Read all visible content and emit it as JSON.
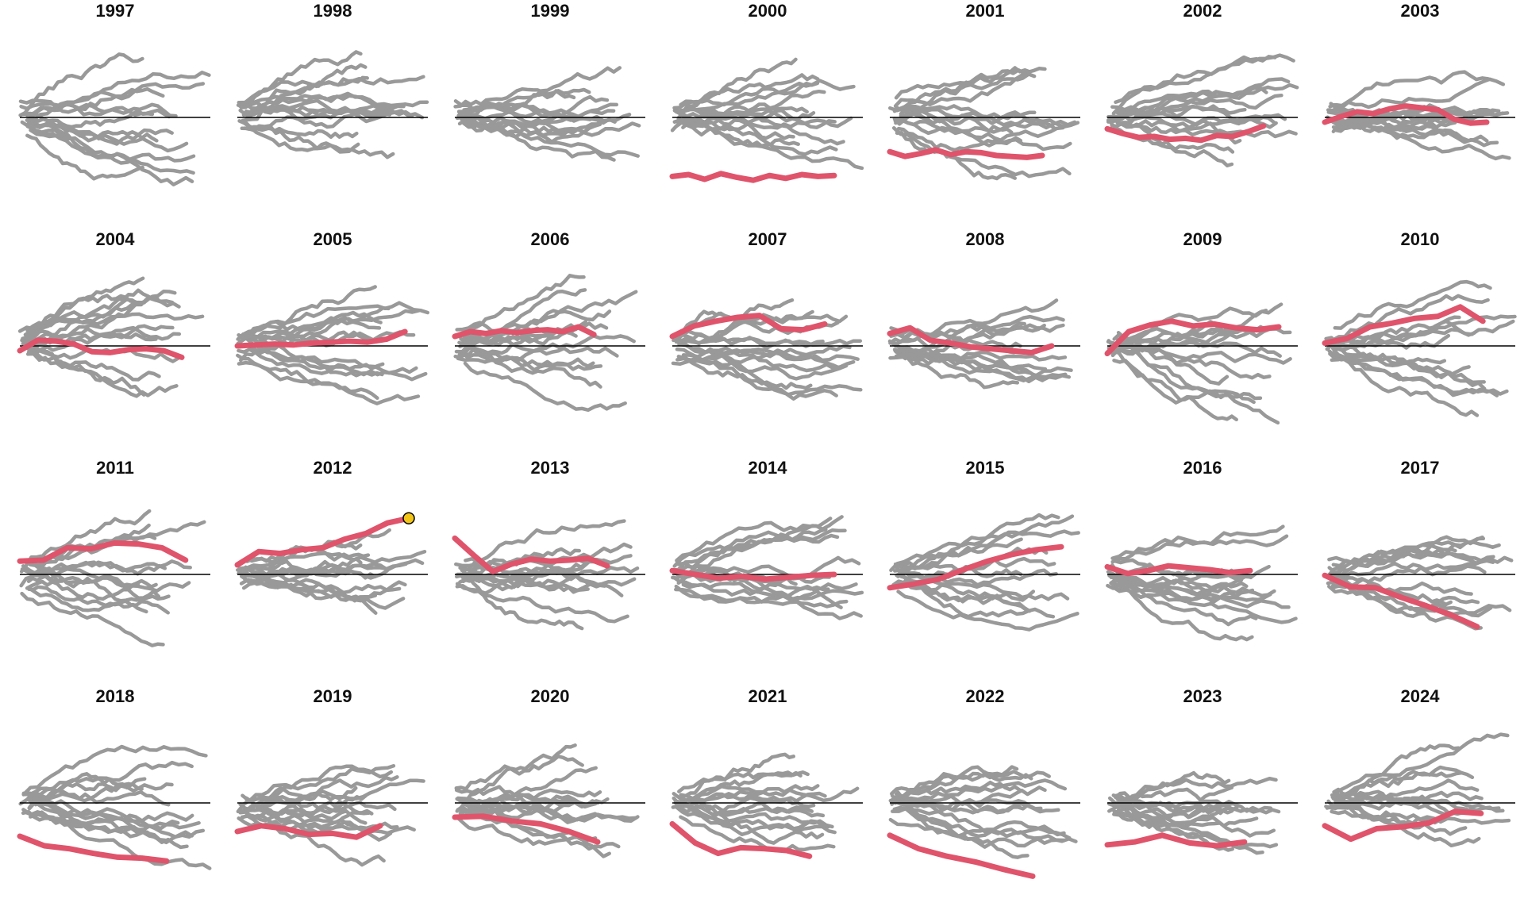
{
  "chart_data": {
    "type": "line",
    "description_of_panels": "small multiples, one panel per year; gray lines = other series, red line = highlighted series, black line = zero baseline",
    "colors": {
      "other": "#999999",
      "highlight": "#E0546B",
      "baseline": "#000000",
      "marker": "#F2C418"
    },
    "ylim": [
      -10,
      10
    ],
    "xlim": [
      0,
      100
    ],
    "panels": [
      {
        "year": "1997",
        "highlight": null,
        "endpoint_marker": false
      },
      {
        "year": "1998",
        "highlight": null,
        "endpoint_marker": false
      },
      {
        "year": "1999",
        "highlight": null,
        "endpoint_marker": false
      },
      {
        "year": "2000",
        "highlight": {
          "values": [
            -6.2,
            -6.0,
            -6.5,
            -5.9,
            -6.3,
            -6.6,
            -6.1,
            -6.4,
            -6.0,
            -6.2,
            -6.1
          ],
          "x_end": 85
        },
        "endpoint_marker": false
      },
      {
        "year": "2001",
        "highlight": {
          "values": [
            -3.6,
            -4.1,
            -3.8,
            -3.4,
            -3.9,
            -3.6,
            -3.7,
            -4.0,
            -4.1,
            -4.2,
            -4.0
          ],
          "x_end": 80
        },
        "endpoint_marker": false
      },
      {
        "year": "2002",
        "highlight": {
          "values": [
            -1.2,
            -1.7,
            -2.1,
            -2.0,
            -2.3,
            -2.2,
            -2.4,
            -1.9,
            -2.0,
            -1.5,
            -0.9
          ],
          "x_end": 82
        },
        "endpoint_marker": false
      },
      {
        "year": "2003",
        "highlight": {
          "values": [
            -0.5,
            0.1,
            0.6,
            0.4,
            0.9,
            1.2,
            1.0,
            0.8,
            -0.2,
            -0.6,
            -0.5
          ],
          "x_end": 85
        },
        "endpoint_marker": false
      },
      {
        "year": "2004",
        "highlight": {
          "values": [
            -0.5,
            0.6,
            0.5,
            0.2,
            -0.6,
            -0.7,
            -0.4,
            -0.3,
            -0.5,
            -1.2
          ],
          "x_end": 85
        },
        "endpoint_marker": false
      },
      {
        "year": "2005",
        "highlight": {
          "values": [
            0.0,
            0.1,
            0.2,
            0.1,
            0.3,
            0.4,
            0.5,
            0.4,
            0.7,
            1.5
          ],
          "x_end": 88
        },
        "endpoint_marker": false
      },
      {
        "year": "2006",
        "highlight": {
          "values": [
            1.0,
            1.5,
            1.3,
            1.6,
            1.4,
            1.6,
            1.7,
            1.5,
            2.0,
            1.2
          ],
          "x_end": 73
        },
        "endpoint_marker": false
      },
      {
        "year": "2007",
        "highlight": {
          "values": [
            1.0,
            2.1,
            2.6,
            3.0,
            3.2,
            1.8,
            1.7,
            2.3
          ],
          "x_end": 80
        },
        "endpoint_marker": false
      },
      {
        "year": "2008",
        "highlight": {
          "values": [
            1.3,
            1.9,
            0.6,
            0.3,
            -0.1,
            -0.3,
            -0.5,
            -0.7,
            0.0
          ],
          "x_end": 85
        },
        "endpoint_marker": false
      },
      {
        "year": "2009",
        "highlight": {
          "values": [
            -0.8,
            1.5,
            2.2,
            2.6,
            2.1,
            2.3,
            1.9,
            1.7,
            2.0
          ],
          "x_end": 90
        },
        "endpoint_marker": false
      },
      {
        "year": "2010",
        "highlight": {
          "values": [
            0.3,
            0.8,
            2.0,
            2.4,
            2.9,
            3.1,
            4.1,
            2.6
          ],
          "x_end": 83
        },
        "endpoint_marker": false
      },
      {
        "year": "2011",
        "highlight": {
          "values": [
            1.4,
            1.5,
            2.8,
            2.7,
            3.3,
            3.2,
            2.8,
            1.5
          ],
          "x_end": 87
        },
        "endpoint_marker": false
      },
      {
        "year": "2012",
        "highlight": {
          "values": [
            1.0,
            2.4,
            2.2,
            2.6,
            2.8,
            3.7,
            4.3,
            5.4,
            5.9
          ],
          "x_end": 90
        },
        "endpoint_marker": true
      },
      {
        "year": "2013",
        "highlight": {
          "values": [
            3.8,
            2.0,
            0.3,
            1.1,
            1.6,
            1.4,
            1.5,
            1.7,
            0.9
          ],
          "x_end": 80
        },
        "endpoint_marker": false
      },
      {
        "year": "2014",
        "highlight": {
          "values": [
            0.4,
            0.0,
            -0.4,
            -0.2,
            -0.5,
            -0.3,
            -0.1,
            0.0
          ],
          "x_end": 85
        },
        "endpoint_marker": false
      },
      {
        "year": "2015",
        "highlight": {
          "values": [
            -1.4,
            -1.0,
            -0.5,
            0.5,
            1.4,
            2.1,
            2.6,
            2.9
          ],
          "x_end": 90
        },
        "endpoint_marker": false
      },
      {
        "year": "2016",
        "highlight": {
          "values": [
            0.8,
            0.1,
            0.4,
            0.9,
            0.7,
            0.5,
            0.2,
            0.4
          ],
          "x_end": 75
        },
        "endpoint_marker": false
      },
      {
        "year": "2017",
        "highlight": {
          "values": [
            -0.1,
            -1.3,
            -1.4,
            -2.4,
            -3.3,
            -4.3,
            -5.5
          ],
          "x_end": 80
        },
        "endpoint_marker": false
      },
      {
        "year": "2018",
        "highlight": {
          "values": [
            -3.5,
            -4.5,
            -4.8,
            -5.3,
            -5.7,
            -5.8,
            -6.1
          ],
          "x_end": 77
        },
        "endpoint_marker": false
      },
      {
        "year": "2019",
        "highlight": {
          "values": [
            -3.0,
            -2.4,
            -2.7,
            -3.3,
            -3.2,
            -3.6,
            -2.4
          ],
          "x_end": 75
        },
        "endpoint_marker": false
      },
      {
        "year": "2020",
        "highlight": {
          "values": [
            -1.5,
            -1.4,
            -1.9,
            -2.2,
            -3.0,
            -4.1
          ],
          "x_end": 75
        },
        "endpoint_marker": false
      },
      {
        "year": "2021",
        "highlight": {
          "values": [
            -2.2,
            -4.2,
            -5.3,
            -4.7,
            -4.8,
            -5.0,
            -5.6
          ],
          "x_end": 72
        },
        "endpoint_marker": false
      },
      {
        "year": "2022",
        "highlight": {
          "values": [
            -3.4,
            -4.8,
            -5.6,
            -6.2,
            -7.0,
            -7.7
          ],
          "x_end": 75
        },
        "endpoint_marker": false
      },
      {
        "year": "2023",
        "highlight": {
          "values": [
            -4.4,
            -4.1,
            -3.4,
            -4.2,
            -4.5,
            -4.1
          ],
          "x_end": 72
        },
        "endpoint_marker": false
      },
      {
        "year": "2024",
        "highlight": {
          "values": [
            -2.4,
            -3.8,
            -2.7,
            -2.5,
            -2.1,
            -0.9,
            -1.1
          ],
          "x_end": 82
        },
        "endpoint_marker": false
      }
    ]
  }
}
